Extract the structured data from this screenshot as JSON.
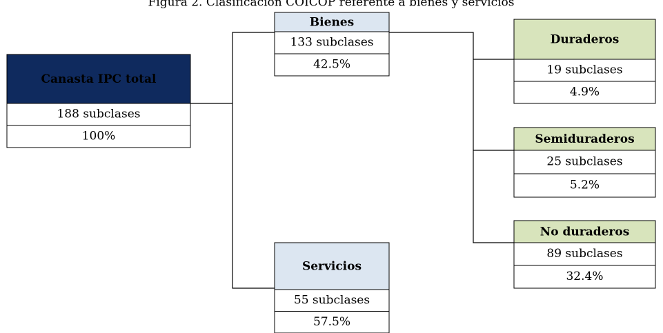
{
  "title": "Figura 2. Clasificación COICOP referente a bienes y servicios",
  "nodes": [
    {
      "label": "Canasta IPC total",
      "count": "188 subclases",
      "share": "100%"
    },
    {
      "label": "Bienes",
      "count": "133 subclases",
      "share": "42.5%"
    },
    {
      "label": "Servicios",
      "count": "55 subclases",
      "share": "57.5%"
    },
    {
      "label": "Duraderos",
      "count": "19 subclases",
      "share": "4.9%"
    },
    {
      "label": "Semiduraderos",
      "count": "25 subclases",
      "share": "5.2%"
    },
    {
      "label": "No duraderos",
      "count": "89 subclases",
      "share": "32.4%"
    }
  ]
}
